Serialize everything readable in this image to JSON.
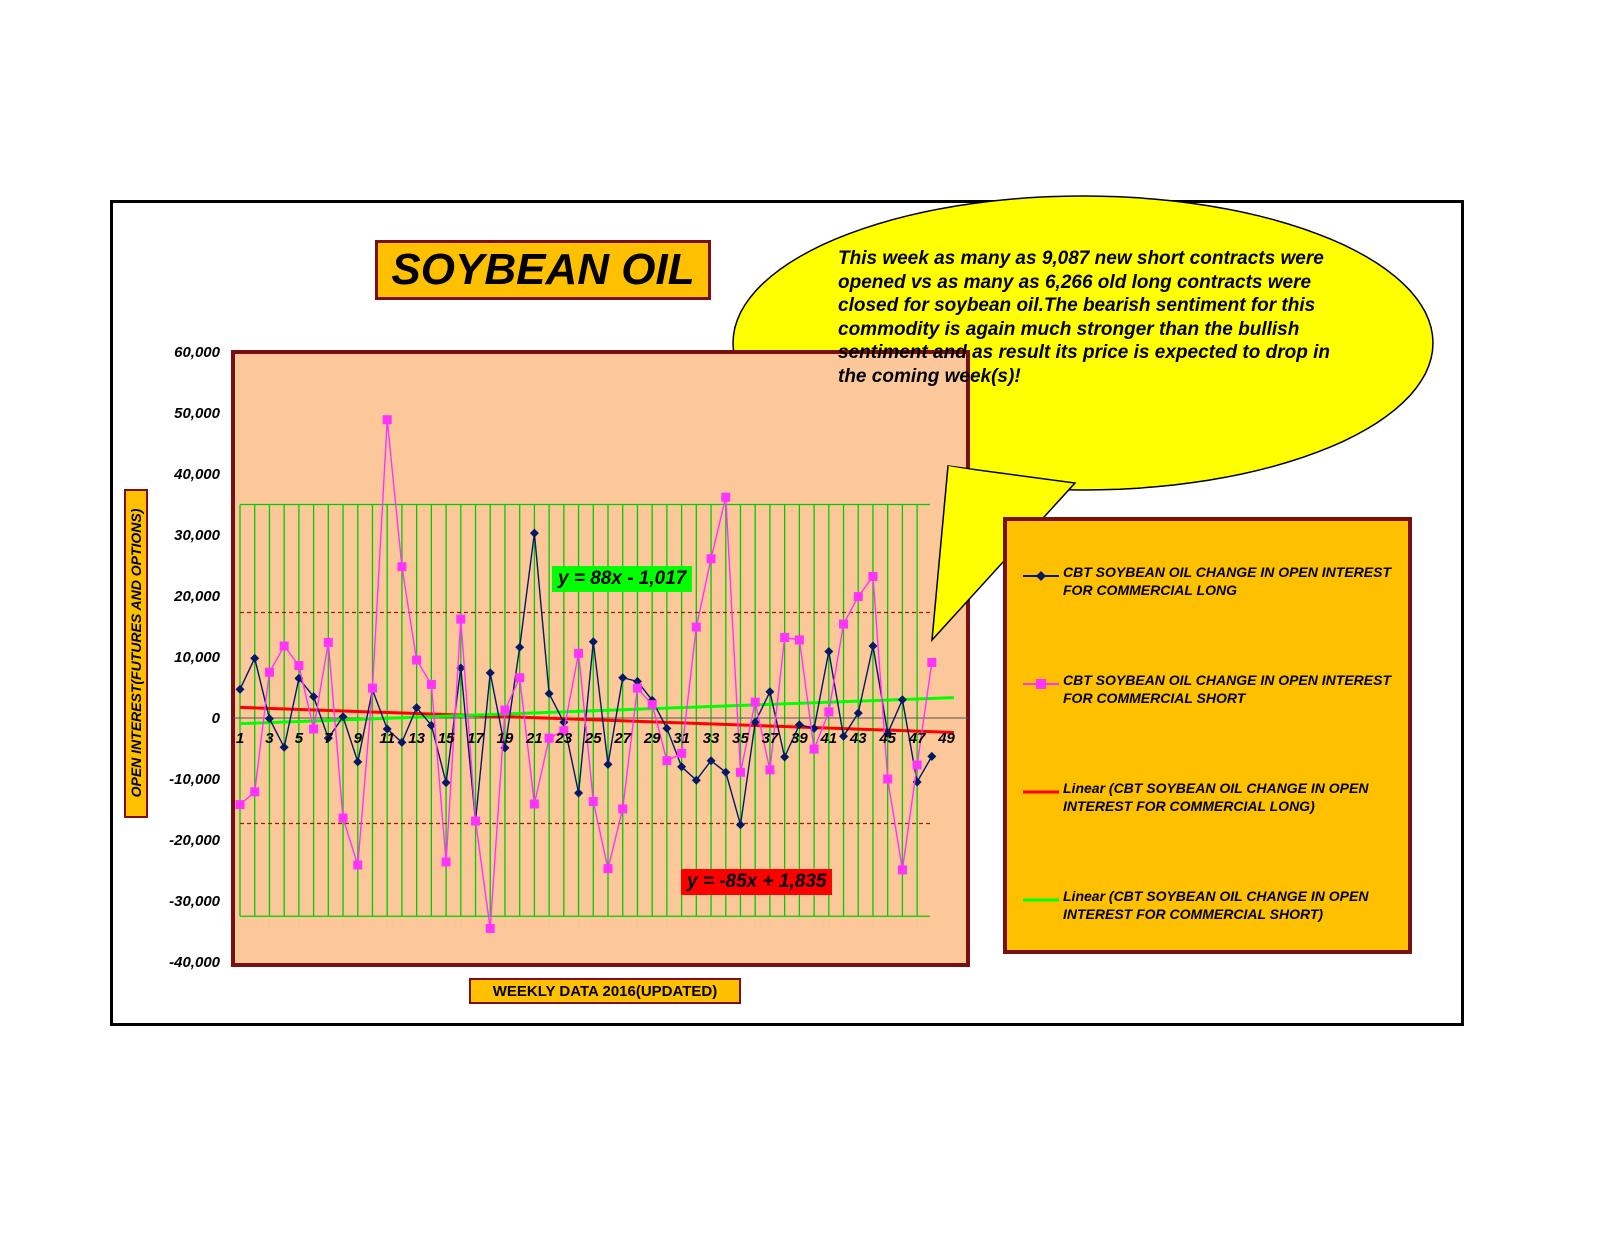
{
  "title": "SOYBEAN OIL",
  "callout": "This week as many as 9,087 new short contracts were opened vs as many as 6,266 old long contracts were closed for soybean oil.The bearish sentiment for this commodity is again much stronger than the bullish sentiment and as result its price is expected to drop in the coming week(s)!",
  "equations": {
    "green": "y = 88x - 1,017",
    "red": "y = -85x + 1,835"
  },
  "legend": [
    {
      "label": "CBT SOYBEAN OIL CHANGE IN OPEN INTEREST FOR COMMERCIAL LONG",
      "color": "#001a66",
      "marker": "diamond"
    },
    {
      "label": "CBT SOYBEAN OIL CHANGE IN OPEN INTEREST FOR COMMERCIAL SHORT",
      "color": "#ff33ff",
      "marker": "square"
    },
    {
      "label": "Linear (CBT SOYBEAN OIL CHANGE IN OPEN INTEREST FOR COMMERCIAL LONG)",
      "color": "#ff0000",
      "marker": "line"
    },
    {
      "label": "Linear (CBT SOYBEAN OIL CHANGE IN OPEN INTEREST FOR COMMERCIAL SHORT)",
      "color": "#00ff00",
      "marker": "line"
    }
  ],
  "colors": {
    "plot_background": "#fcc89a",
    "plot_border": "#7a0f0f",
    "grid_green": "#00cc00",
    "band_lines": "#8b2500",
    "label_box": "#ffc000",
    "callout": "#ffff00"
  },
  "chart_data": {
    "type": "line",
    "title": "SOYBEAN OIL",
    "xlabel": "WEEKLY DATA 2016(UPDATED)",
    "ylabel": "OPEN INTEREST(FUTURES AND OPTIONS)",
    "ylim": [
      -40000,
      60000
    ],
    "y_ticks": [
      "60,000",
      "50,000",
      "40,000",
      "30,000",
      "20,000",
      "10,000",
      "0",
      "-10,000",
      "-20,000",
      "-30,000",
      "-40,000"
    ],
    "y_tick_values": [
      60000,
      50000,
      40000,
      30000,
      20000,
      10000,
      0,
      -10000,
      -20000,
      -30000,
      -40000
    ],
    "x": [
      1,
      2,
      3,
      4,
      5,
      6,
      7,
      8,
      9,
      10,
      11,
      12,
      13,
      14,
      15,
      16,
      17,
      18,
      19,
      20,
      21,
      22,
      23,
      24,
      25,
      26,
      27,
      28,
      29,
      30,
      31,
      32,
      33,
      34,
      35,
      36,
      37,
      38,
      39,
      40,
      41,
      42,
      43,
      44,
      45,
      46,
      47,
      48
    ],
    "x_tick_labels": [
      "1",
      "3",
      "5",
      "7",
      "9",
      "11",
      "13",
      "15",
      "17",
      "19",
      "21",
      "23",
      "25",
      "27",
      "29",
      "31",
      "33",
      "35",
      "37",
      "39",
      "41",
      "43",
      "45",
      "47",
      "49"
    ],
    "x_tick_values": [
      1,
      3,
      5,
      7,
      9,
      11,
      13,
      15,
      17,
      19,
      21,
      23,
      25,
      27,
      29,
      31,
      33,
      35,
      37,
      39,
      41,
      43,
      45,
      47,
      49
    ],
    "reference_levels": [
      35000,
      17300,
      -17300,
      -32500
    ],
    "series": [
      {
        "name": "CBT SOYBEAN OIL CHANGE IN OPEN INTEREST FOR COMMERCIAL LONG",
        "color": "#001a66",
        "values": [
          4700,
          9800,
          -100,
          -4800,
          6500,
          3500,
          -3300,
          200,
          -7200,
          4600,
          -1800,
          -4000,
          1700,
          -1200,
          -10600,
          8200,
          -16900,
          7400,
          -4900,
          11600,
          30300,
          4000,
          -700,
          -12300,
          12500,
          -7600,
          6600,
          6000,
          2900,
          -1700,
          -8000,
          -10200,
          -7000,
          -8900,
          -17500,
          -700,
          4300,
          -6400,
          -1100,
          -1700,
          10900,
          -3000,
          800,
          11800,
          -2500,
          3000,
          -10500,
          -6300
        ]
      },
      {
        "name": "CBT SOYBEAN OIL CHANGE IN OPEN INTEREST FOR COMMERCIAL SHORT",
        "color": "#ff33ff",
        "values": [
          -14200,
          -12100,
          7500,
          11800,
          8600,
          -1800,
          12400,
          -16400,
          -24100,
          4900,
          48900,
          24800,
          9500,
          5500,
          -23600,
          16200,
          -16900,
          -34500,
          1300,
          6600,
          -14100,
          -3300,
          -2100,
          10600,
          -13700,
          -24700,
          -14900,
          4900,
          2200,
          -7000,
          -5800,
          14900,
          26100,
          36200,
          -8900,
          2600,
          -8500,
          13200,
          12800,
          -5100,
          1000,
          15400,
          19900,
          23200,
          -10000,
          -24900,
          -7700,
          9100
        ]
      },
      {
        "name": "Linear (CBT SOYBEAN OIL CHANGE IN OPEN INTEREST FOR COMMERCIAL LONG)",
        "color": "#ff0000",
        "trend": {
          "slope": -85,
          "intercept": 1835
        }
      },
      {
        "name": "Linear (CBT SOYBEAN OIL CHANGE IN OPEN INTEREST FOR COMMERCIAL SHORT)",
        "color": "#00ff00",
        "trend": {
          "slope": 88,
          "intercept": -1017
        }
      }
    ],
    "grid": true,
    "legend_position": "right"
  }
}
